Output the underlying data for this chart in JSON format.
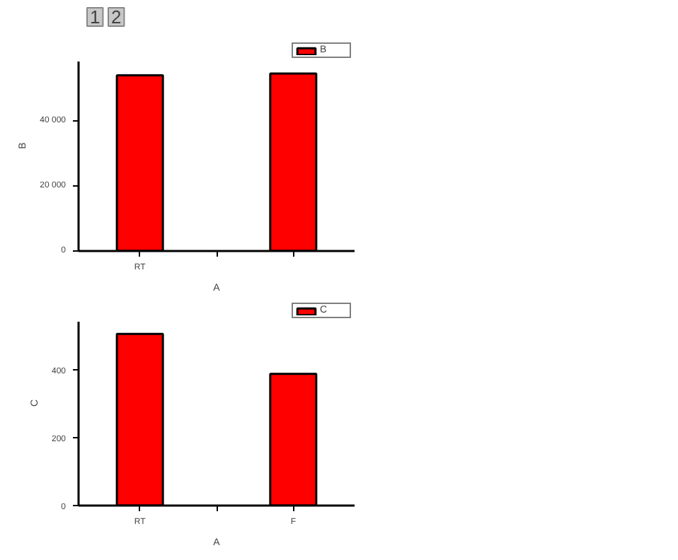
{
  "chart_data": [
    {
      "type": "bar",
      "categories": [
        "RT",
        null,
        null
      ],
      "xlabel": "A",
      "ylabel": "B",
      "annotations": [
        "1",
        "2"
      ],
      "series": [
        {
          "name": "B",
          "color": "#ff0000",
          "values": [
            54000,
            null,
            54500
          ]
        }
      ],
      "ylim": [
        0,
        58000
      ],
      "yticks": [
        0,
        {
          "value": 20000,
          "label": "20 000"
        },
        {
          "value": 40000,
          "label": "40 000"
        }
      ],
      "legend": "top right",
      "grid": false
    },
    {
      "type": "bar",
      "categories": [
        "RT",
        null,
        "F"
      ],
      "xlabel": "A",
      "ylabel": "C",
      "series": [
        {
          "name": "C",
          "color": "#ff0000",
          "values": [
            506,
            null,
            388
          ]
        }
      ],
      "ylim": [
        0,
        540
      ],
      "yticks": [
        0,
        200,
        400
      ],
      "legend": "top right",
      "grid": false
    }
  ]
}
